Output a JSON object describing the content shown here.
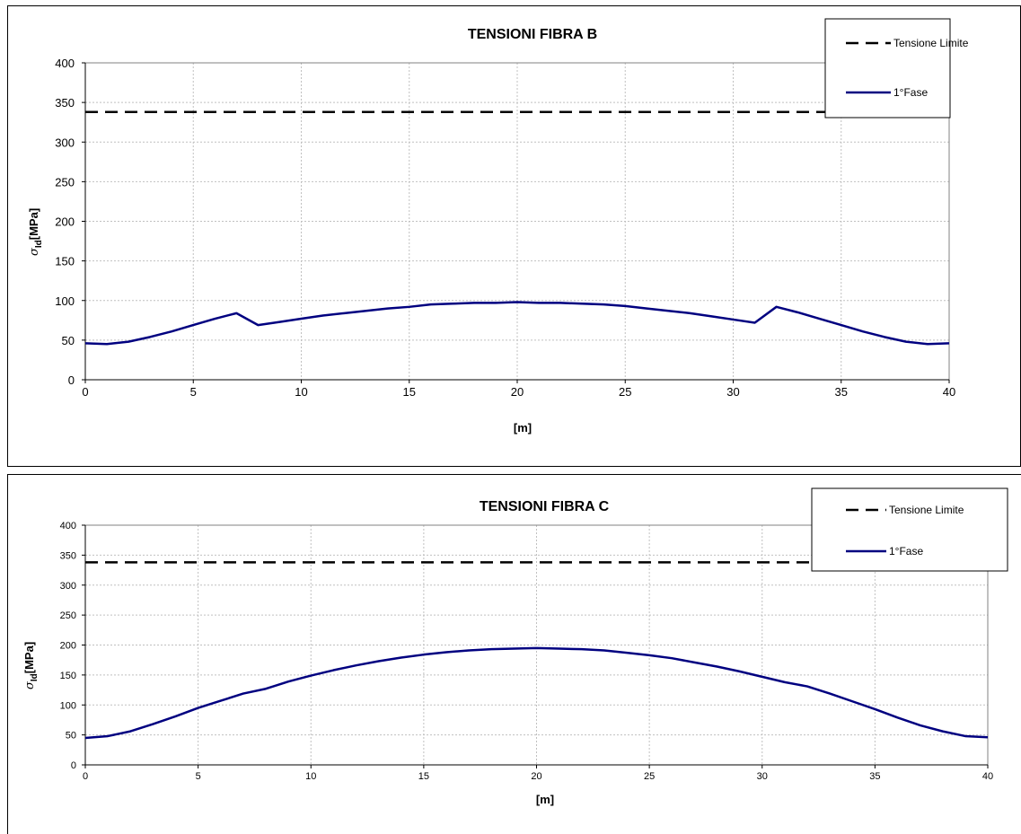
{
  "colors": {
    "limit": "#000000",
    "phase": "#000080",
    "grid": "#c0c0c0"
  },
  "chart_data": [
    {
      "type": "line",
      "title": "TENSIONI FIBRA B",
      "xlabel": "[m]",
      "ylabel_symbol": "σ",
      "ylabel_sub": "Id",
      "ylabel_unit": "[MPa]",
      "xlim": [
        0,
        40
      ],
      "ylim": [
        0,
        400
      ],
      "xticks": [
        0,
        5,
        10,
        15,
        20,
        25,
        30,
        35,
        40
      ],
      "yticks": [
        0,
        50,
        100,
        150,
        200,
        250,
        300,
        350,
        400
      ],
      "grid": true,
      "legend_position": "top-right",
      "series": [
        {
          "name": "Tensione Limite",
          "style": "dashed",
          "x": [
            0,
            40
          ],
          "values": [
            338,
            338
          ]
        },
        {
          "name": "1°Fase",
          "style": "solid",
          "x": [
            0,
            1,
            2,
            3,
            4,
            5,
            6,
            7,
            8,
            9,
            10,
            11,
            12,
            13,
            14,
            15,
            16,
            17,
            18,
            19,
            20,
            21,
            22,
            23,
            24,
            25,
            26,
            27,
            28,
            29,
            30,
            31,
            32,
            33,
            34,
            35,
            36,
            37,
            38,
            39,
            40
          ],
          "values": [
            46,
            45,
            48,
            54,
            61,
            69,
            77,
            84,
            69,
            73,
            77,
            81,
            84,
            87,
            90,
            92,
            95,
            96,
            97,
            97,
            98,
            97,
            97,
            96,
            95,
            93,
            90,
            87,
            84,
            80,
            76,
            72,
            92,
            85,
            77,
            69,
            61,
            54,
            48,
            45,
            46
          ]
        }
      ]
    },
    {
      "type": "line",
      "title": "TENSIONI FIBRA C",
      "xlabel": "[m]",
      "ylabel_symbol": "σ",
      "ylabel_sub": "Id",
      "ylabel_unit": "[MPa]",
      "xlim": [
        0,
        40
      ],
      "ylim": [
        0,
        400
      ],
      "xticks": [
        0,
        5,
        10,
        15,
        20,
        25,
        30,
        35,
        40
      ],
      "yticks": [
        0,
        50,
        100,
        150,
        200,
        250,
        300,
        350,
        400
      ],
      "grid": true,
      "legend_position": "top-right",
      "series": [
        {
          "name": "Tensione Limite",
          "style": "dashed",
          "x": [
            0,
            40
          ],
          "values": [
            338,
            338
          ]
        },
        {
          "name": "1°Fase",
          "style": "solid",
          "x": [
            0,
            1,
            2,
            3,
            4,
            5,
            6,
            7,
            8,
            9,
            10,
            11,
            12,
            13,
            14,
            15,
            16,
            17,
            18,
            19,
            20,
            21,
            22,
            23,
            24,
            25,
            26,
            27,
            28,
            29,
            30,
            31,
            32,
            33,
            34,
            35,
            36,
            37,
            38,
            39,
            40
          ],
          "values": [
            45,
            48,
            56,
            68,
            81,
            95,
            107,
            119,
            127,
            139,
            149,
            158,
            166,
            173,
            179,
            184,
            188,
            191,
            193,
            194,
            195,
            194,
            193,
            191,
            187,
            183,
            178,
            171,
            164,
            156,
            147,
            138,
            131,
            119,
            106,
            93,
            79,
            66,
            56,
            48,
            46
          ]
        }
      ]
    }
  ]
}
